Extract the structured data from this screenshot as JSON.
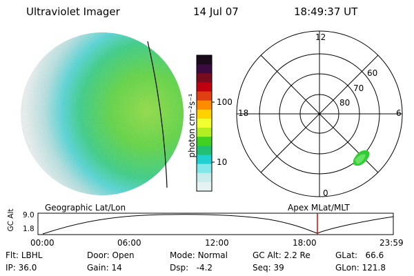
{
  "header": {
    "instrument": "Ultraviolet Imager",
    "date": "14 Jul 07",
    "time": "18:49:37 UT"
  },
  "colorbar": {
    "unit_label": "photon cm⁻²s⁻¹",
    "ticks": [
      "100",
      "10"
    ],
    "colors": [
      "#1a0a1a",
      "#3a0a40",
      "#7a0a20",
      "#c00010",
      "#e04010",
      "#ff8c00",
      "#ffd200",
      "#f0ff30",
      "#b0f020",
      "#40d020",
      "#20c070",
      "#20d0d0",
      "#80e8e8",
      "#c8ecec",
      "#e4f2f2"
    ]
  },
  "polar_grid": {
    "mlt_labels": [
      "12",
      "18",
      "6",
      "0"
    ],
    "mlat_labels": [
      "60",
      "70",
      "80"
    ]
  },
  "map_labels": {
    "left": "Geographic Lat/Lon",
    "right": "Apex  MLat/MLT"
  },
  "timeline": {
    "y_label": "GC Alt",
    "y_ticks": [
      "9.0",
      "1.8"
    ],
    "x_ticks": [
      "00:00",
      "06:00",
      "12:00",
      "18:00",
      "23:59"
    ],
    "current_time_marker": "18:49"
  },
  "footer": {
    "row1": [
      {
        "label": "Flt:",
        "value": "LBHL"
      },
      {
        "label": "Door:",
        "value": "Open"
      },
      {
        "label": "Mode:",
        "value": "Normal"
      },
      {
        "label": "GC Alt:",
        "value": "2.2 Re"
      },
      {
        "label": "GLat:",
        "value": "66.6"
      }
    ],
    "row2": [
      {
        "label": "IP:",
        "value": "36.0"
      },
      {
        "label": "Gain:",
        "value": "14"
      },
      {
        "label": "Dsp:",
        "value": "-4.2"
      },
      {
        "label": "Seq:",
        "value": "39"
      },
      {
        "label": "GLon:",
        "value": "121.8"
      }
    ]
  }
}
